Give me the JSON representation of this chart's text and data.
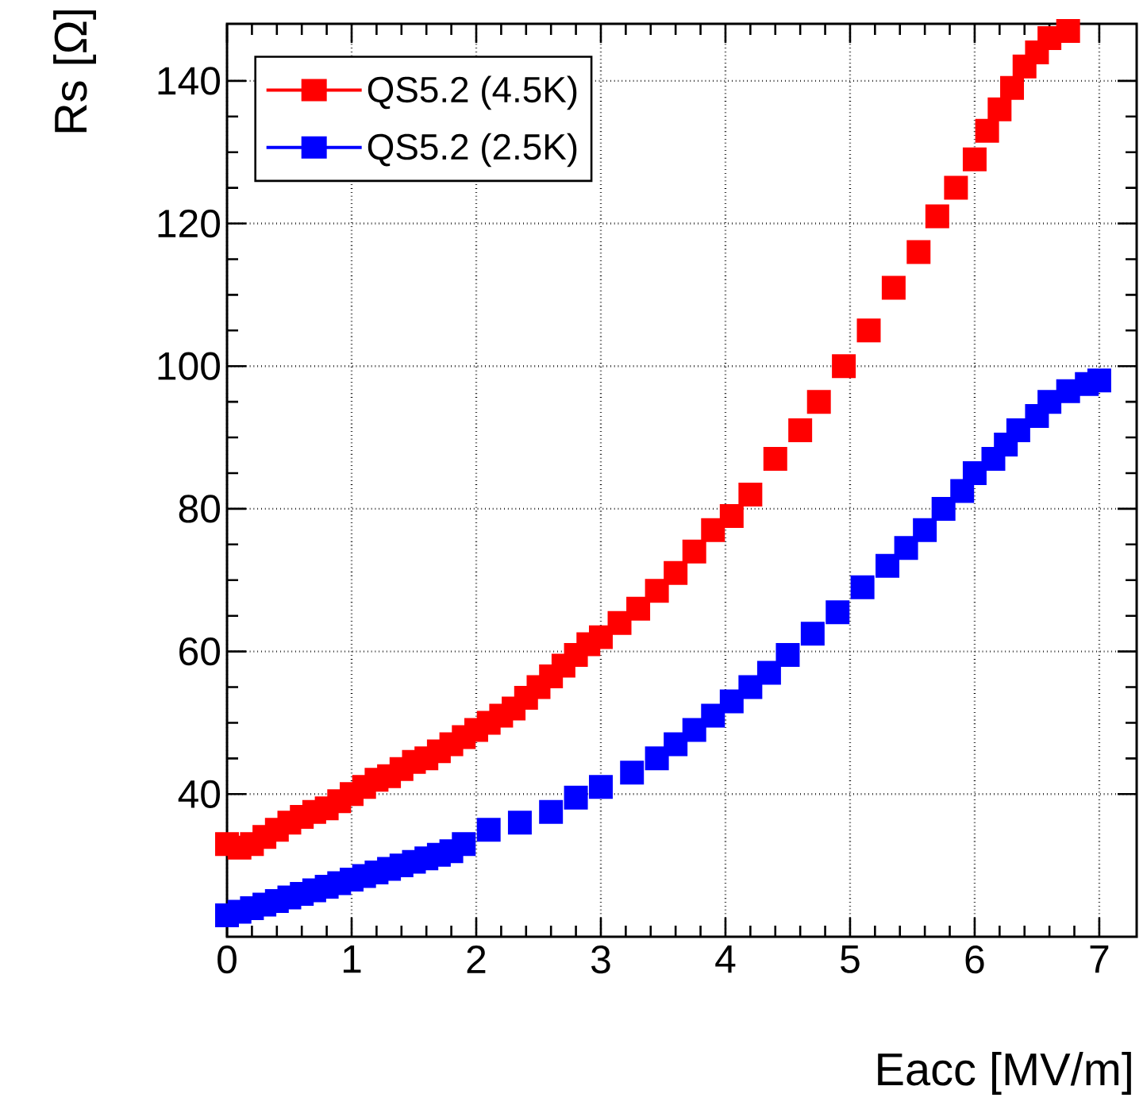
{
  "chart_data": {
    "type": "scatter",
    "xlabel": "Eacc [MV/m]",
    "ylabel": "Rs [Ω]",
    "xlim": [
      0,
      7.3
    ],
    "ylim": [
      20,
      148
    ],
    "xticks": [
      0,
      1,
      2,
      3,
      4,
      5,
      6,
      7
    ],
    "yticks": [
      40,
      60,
      80,
      100,
      120,
      140
    ],
    "grid": true,
    "legend": "top left",
    "marker": "square",
    "series": [
      {
        "name": "QS5.2 (4.5K)",
        "color": "#ff0000",
        "x": [
          0,
          0.1,
          0.2,
          0.3,
          0.4,
          0.5,
          0.6,
          0.7,
          0.8,
          0.9,
          1.0,
          1.1,
          1.2,
          1.3,
          1.4,
          1.5,
          1.6,
          1.7,
          1.8,
          1.9,
          2.0,
          2.1,
          2.2,
          2.3,
          2.4,
          2.5,
          2.6,
          2.7,
          2.8,
          2.9,
          3.0,
          3.15,
          3.3,
          3.45,
          3.6,
          3.75,
          3.9,
          4.05,
          4.2,
          4.4,
          4.6,
          4.75,
          4.95,
          5.15,
          5.35,
          5.55,
          5.7,
          5.85,
          6.0,
          6.1,
          6.2,
          6.3,
          6.4,
          6.5,
          6.6,
          6.75
        ],
        "values": [
          33,
          32.5,
          33,
          34,
          35,
          36,
          36.8,
          37.5,
          38,
          39,
          40,
          41,
          42,
          42.5,
          43.5,
          44.5,
          45,
          46,
          47,
          48,
          49,
          50,
          51,
          52,
          53.5,
          55,
          56.5,
          58,
          59.5,
          61,
          62,
          64,
          66,
          68.5,
          71,
          74,
          77,
          79,
          82,
          87,
          91,
          95,
          100,
          105,
          111,
          116,
          121,
          125,
          129,
          133,
          136,
          139,
          142,
          144,
          146,
          147
        ]
      },
      {
        "name": "QS5.2 (2.5K)",
        "color": "#0000ff",
        "x": [
          0,
          0.1,
          0.2,
          0.3,
          0.4,
          0.5,
          0.6,
          0.7,
          0.8,
          0.9,
          1.0,
          1.1,
          1.2,
          1.3,
          1.4,
          1.5,
          1.6,
          1.7,
          1.8,
          1.9,
          2.1,
          2.35,
          2.6,
          2.8,
          3.0,
          3.25,
          3.45,
          3.6,
          3.75,
          3.9,
          4.05,
          4.2,
          4.35,
          4.5,
          4.7,
          4.9,
          5.1,
          5.3,
          5.45,
          5.6,
          5.75,
          5.9,
          6.0,
          6.15,
          6.25,
          6.35,
          6.5,
          6.6,
          6.75,
          6.9,
          7.0
        ],
        "values": [
          23,
          23.5,
          24,
          24.5,
          25,
          25.5,
          26,
          26.5,
          27,
          27.5,
          28,
          28.5,
          29,
          29.5,
          30,
          30.5,
          31,
          31.5,
          32,
          33,
          35,
          36,
          37.5,
          39.5,
          41,
          43,
          45,
          47,
          49,
          51,
          53,
          55,
          57,
          59.5,
          62.5,
          65.5,
          69,
          72,
          74.5,
          77,
          80,
          82.5,
          85,
          87,
          89,
          91,
          93,
          95,
          96.5,
          97.5,
          98
        ]
      }
    ]
  }
}
